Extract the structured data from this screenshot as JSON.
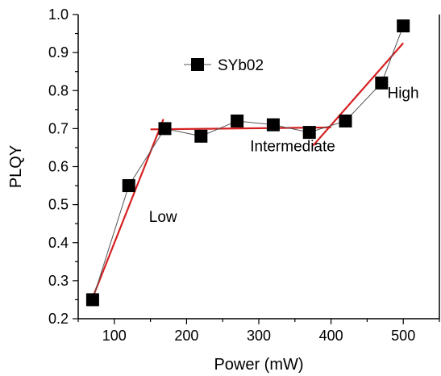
{
  "chart_data": {
    "type": "scatter",
    "xlabel": "Power (mW)",
    "ylabel": "PLQY",
    "xlim": [
      50,
      550
    ],
    "ylim": [
      0.2,
      1.0
    ],
    "x_ticks": [
      100,
      200,
      300,
      400,
      500
    ],
    "y_ticks": [
      0.2,
      0.3,
      0.4,
      0.5,
      0.6,
      0.7,
      0.8,
      0.9,
      1.0
    ],
    "series": [
      {
        "name": "SYb02",
        "marker": "square",
        "color": "#000000",
        "line_color": "#555555",
        "x": [
          70,
          120,
          170,
          220,
          270,
          320,
          370,
          420,
          470,
          500
        ],
        "y": [
          0.25,
          0.55,
          0.7,
          0.68,
          0.72,
          0.71,
          0.69,
          0.72,
          0.82,
          0.97
        ]
      }
    ],
    "fit_lines": [
      {
        "color": "#d62020",
        "x": [
          72,
          168
        ],
        "y": [
          0.265,
          0.725
        ]
      },
      {
        "color": "#d62020",
        "x": [
          150,
          400
        ],
        "y": [
          0.698,
          0.703
        ]
      },
      {
        "color": "#d62020",
        "x": [
          375,
          500
        ],
        "y": [
          0.655,
          0.925
        ]
      }
    ],
    "annotations": [
      {
        "text": "Low",
        "x": 148,
        "y": 0.455
      },
      {
        "text": "Intermediate",
        "x": 288,
        "y": 0.64
      },
      {
        "text": "High",
        "x": 478,
        "y": 0.78
      }
    ],
    "legend": {
      "placement": "top-left",
      "label": "SYb02"
    },
    "grid": false
  }
}
